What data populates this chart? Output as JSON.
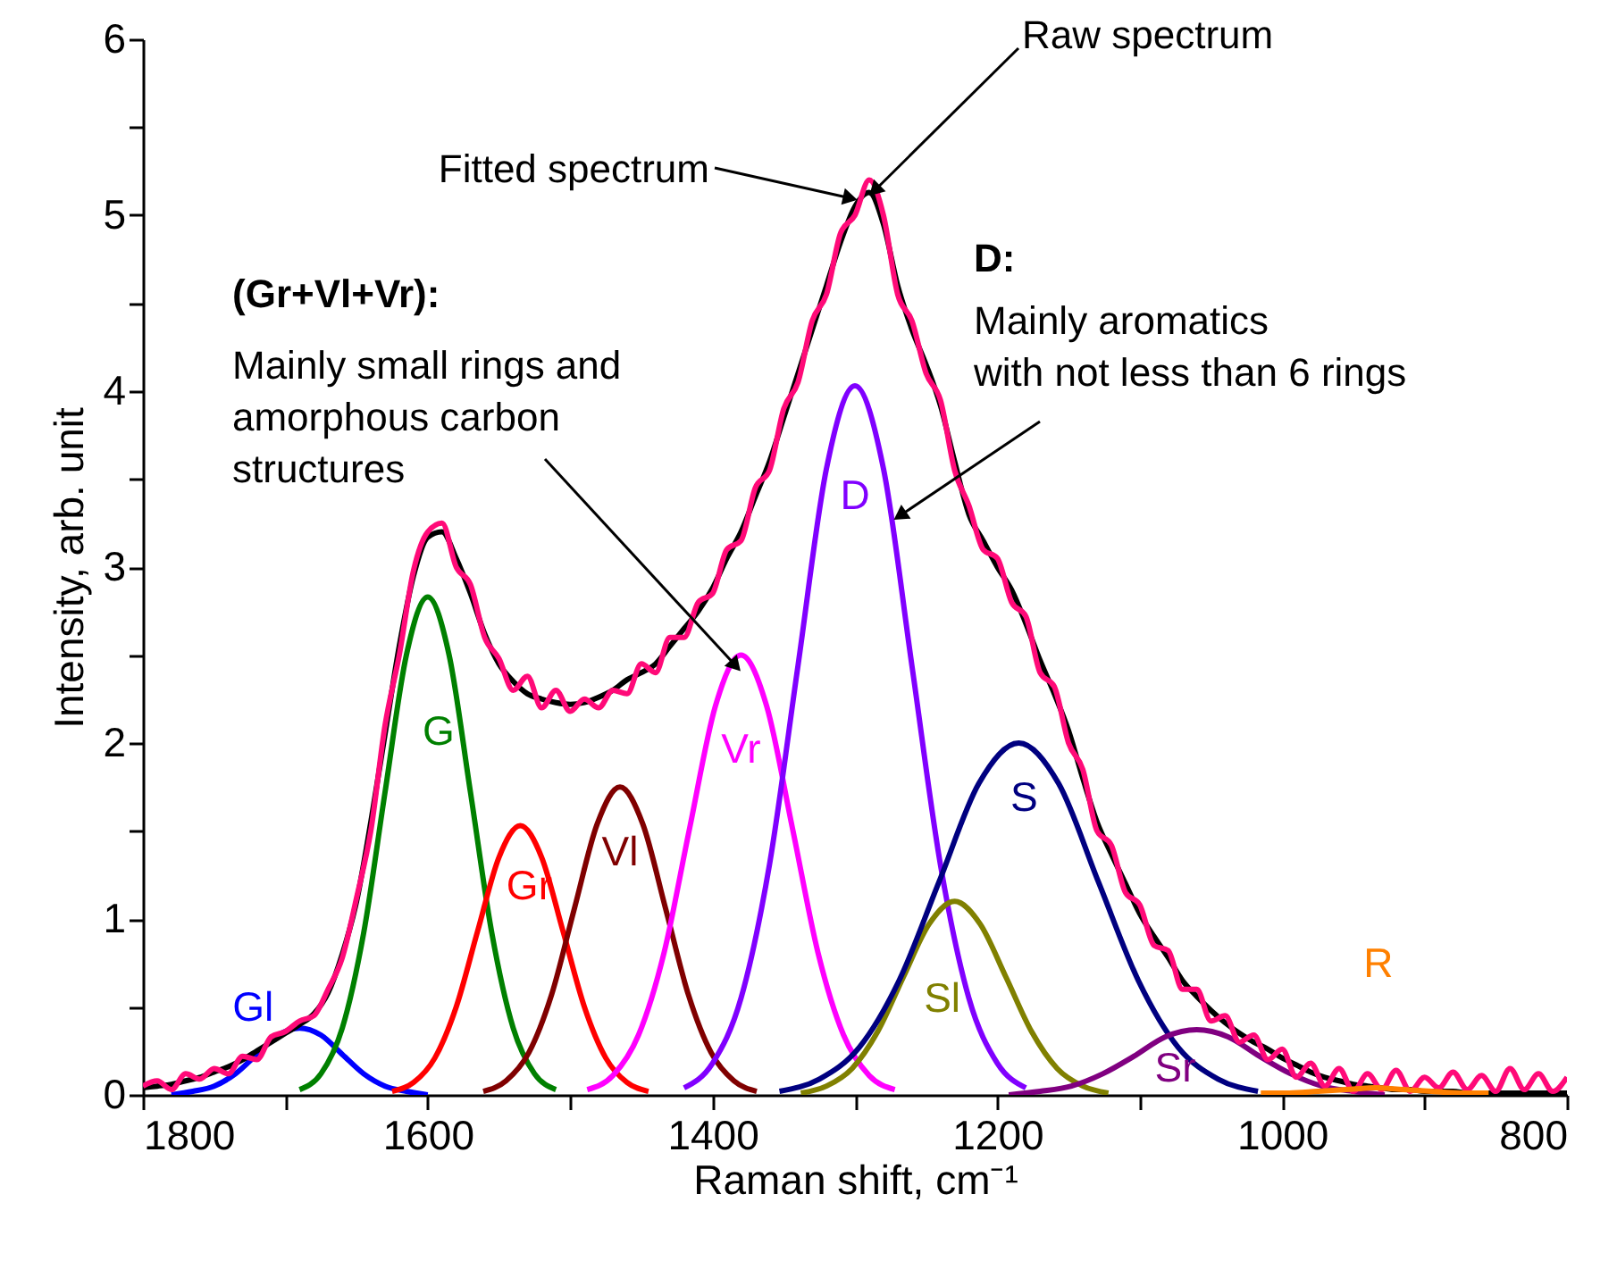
{
  "chart_data": {
    "type": "line",
    "xlabel": "Raman shift, cm⁻¹",
    "ylabel": "Intensity, arb. unit",
    "xlim": [
      1800,
      800
    ],
    "ylim": [
      0,
      6
    ],
    "xticks": [
      1800,
      {
        "value": 1700,
        "label": null
      },
      1600,
      {
        "value": 1500,
        "label": null
      },
      1400,
      {
        "value": 1300,
        "label": null
      },
      1200,
      {
        "value": 1100,
        "label": null
      },
      1000,
      {
        "value": 900,
        "label": null
      },
      800
    ],
    "yticks": [
      0,
      {
        "value": 0.5,
        "label": null
      },
      1,
      {
        "value": 1.5,
        "label": null
      },
      2,
      {
        "value": 2.5,
        "label": null
      },
      3,
      {
        "value": 3.5,
        "label": null
      },
      4,
      {
        "value": 4.5,
        "label": null
      },
      5,
      {
        "value": 5.5,
        "label": null
      },
      6
    ],
    "grid": false,
    "line_style": "solid",
    "x": [
      1800,
      1790,
      1780,
      1770,
      1760,
      1750,
      1740,
      1730,
      1720,
      1710,
      1700,
      1690,
      1680,
      1670,
      1660,
      1650,
      1640,
      1630,
      1620,
      1610,
      1600,
      1590,
      1580,
      1570,
      1560,
      1550,
      1540,
      1530,
      1520,
      1510,
      1500,
      1490,
      1480,
      1470,
      1460,
      1450,
      1440,
      1430,
      1420,
      1410,
      1400,
      1390,
      1380,
      1370,
      1360,
      1350,
      1340,
      1330,
      1320,
      1310,
      1300,
      1290,
      1280,
      1270,
      1260,
      1250,
      1240,
      1230,
      1220,
      1210,
      1200,
      1190,
      1180,
      1170,
      1160,
      1150,
      1140,
      1130,
      1120,
      1110,
      1100,
      1090,
      1080,
      1070,
      1060,
      1050,
      1040,
      1030,
      1020,
      1010,
      1000,
      990,
      980,
      970,
      960,
      950,
      940,
      930,
      920,
      910,
      900,
      890,
      880,
      870,
      860,
      850,
      840,
      830,
      820,
      810,
      800
    ],
    "series": [
      {
        "name": "Gl",
        "color": "#0000ff",
        "x": [
          1780,
          1765,
          1750,
          1735,
          1720,
          1705,
          1690,
          1675,
          1660,
          1645,
          1630,
          1615,
          1600
        ],
        "values": [
          0,
          0.02,
          0.05,
          0.12,
          0.23,
          0.34,
          0.38,
          0.34,
          0.23,
          0.12,
          0.05,
          0.02,
          0
        ]
      },
      {
        "name": "G",
        "color": "#008000",
        "x": [
          1690,
          1675,
          1660,
          1645,
          1630,
          1615,
          1600,
          1585,
          1570,
          1555,
          1540,
          1525,
          1510
        ],
        "values": [
          0.03,
          0.12,
          0.38,
          0.92,
          1.72,
          2.5,
          2.83,
          2.5,
          1.72,
          0.92,
          0.38,
          0.12,
          0.03
        ]
      },
      {
        "name": "Gr",
        "color": "#ff0000",
        "x": [
          1625,
          1610,
          1595,
          1580,
          1565,
          1550,
          1535,
          1520,
          1505,
          1490,
          1475,
          1460,
          1445
        ],
        "values": [
          0.02,
          0.07,
          0.21,
          0.5,
          0.93,
          1.35,
          1.53,
          1.35,
          0.93,
          0.5,
          0.21,
          0.07,
          0.02
        ]
      },
      {
        "name": "Vl",
        "color": "#800000",
        "x": [
          1561,
          1545,
          1529,
          1513,
          1497,
          1481,
          1465,
          1449,
          1433,
          1417,
          1401,
          1385,
          1369
        ],
        "values": [
          0.02,
          0.08,
          0.24,
          0.57,
          1.06,
          1.54,
          1.75,
          1.54,
          1.06,
          0.57,
          0.24,
          0.08,
          0.02
        ]
      },
      {
        "name": "Vr",
        "color": "#ff00ff",
        "x": [
          1488,
          1470,
          1452,
          1434,
          1416,
          1398,
          1380,
          1362,
          1344,
          1326,
          1308,
          1290,
          1272
        ],
        "values": [
          0.03,
          0.11,
          0.34,
          0.81,
          1.52,
          2.21,
          2.5,
          2.21,
          1.52,
          0.81,
          0.34,
          0.11,
          0.03
        ]
      },
      {
        "name": "D",
        "color": "#8000ff",
        "x": [
          1420,
          1400,
          1380,
          1360,
          1340,
          1320,
          1300,
          1280,
          1260,
          1240,
          1220,
          1200,
          1180
        ],
        "values": [
          0.04,
          0.18,
          0.55,
          1.31,
          2.44,
          3.56,
          4.03,
          3.56,
          2.44,
          1.31,
          0.55,
          0.18,
          0.04
        ]
      },
      {
        "name": "Sl",
        "color": "#808000",
        "x": [
          1338,
          1320,
          1302,
          1284,
          1266,
          1248,
          1230,
          1212,
          1194,
          1176,
          1158,
          1140,
          1122
        ],
        "values": [
          0.01,
          0.05,
          0.15,
          0.36,
          0.67,
          0.97,
          1.1,
          0.97,
          0.67,
          0.36,
          0.15,
          0.05,
          0.01
        ]
      },
      {
        "name": "S",
        "color": "#000080",
        "x": [
          1353,
          1325,
          1297,
          1269,
          1241,
          1213,
          1185,
          1157,
          1129,
          1101,
          1073,
          1045,
          1017
        ],
        "values": [
          0.02,
          0.09,
          0.27,
          0.65,
          1.21,
          1.77,
          2.0,
          1.77,
          1.21,
          0.65,
          0.27,
          0.09,
          0.02
        ]
      },
      {
        "name": "Sr",
        "color": "#800080",
        "x": [
          1192,
          1170,
          1148,
          1126,
          1104,
          1082,
          1060,
          1038,
          1016,
          994,
          972,
          950,
          928
        ],
        "values": [
          0,
          0.02,
          0.05,
          0.12,
          0.22,
          0.33,
          0.37,
          0.33,
          0.22,
          0.12,
          0.05,
          0.02,
          0
        ]
      },
      {
        "color": "#000000",
        "values": [
          0.04,
          0.05,
          0.06,
          0.08,
          0.1,
          0.13,
          0.16,
          0.2,
          0.25,
          0.3,
          0.35,
          0.4,
          0.46,
          0.58,
          0.8,
          1.1,
          1.55,
          2.05,
          2.55,
          2.95,
          3.17,
          3.2,
          3.05,
          2.85,
          2.62,
          2.45,
          2.35,
          2.28,
          2.25,
          2.23,
          2.22,
          2.23,
          2.26,
          2.3,
          2.36,
          2.4,
          2.45,
          2.55,
          2.65,
          2.75,
          2.88,
          3.05,
          3.2,
          3.4,
          3.6,
          3.85,
          4.1,
          4.35,
          4.6,
          4.85,
          5.05,
          5.13,
          4.95,
          4.6,
          4.35,
          4.15,
          3.92,
          3.6,
          3.3,
          3.15,
          3.0,
          2.87,
          2.68,
          2.47,
          2.28,
          2.07,
          1.8,
          1.55,
          1.37,
          1.2,
          1.03,
          0.9,
          0.78,
          0.65,
          0.56,
          0.48,
          0.41,
          0.35,
          0.3,
          0.26,
          0.21,
          0.17,
          0.13,
          0.1,
          0.08,
          0.06,
          0.05,
          0.04,
          0.03,
          0.03,
          0.02,
          0.02,
          0.02,
          0.01,
          0.01,
          0.01,
          0.01,
          0.01,
          0.01,
          0.01,
          0.01
        ]
      },
      {
        "color": "#ff0a78",
        "values": [
          0.05,
          0.08,
          0.03,
          0.12,
          0.09,
          0.15,
          0.12,
          0.22,
          0.2,
          0.33,
          0.36,
          0.42,
          0.45,
          0.6,
          0.78,
          1.12,
          1.5,
          2.1,
          2.5,
          2.98,
          3.2,
          3.25,
          3.0,
          2.9,
          2.6,
          2.48,
          2.3,
          2.38,
          2.2,
          2.3,
          2.18,
          2.25,
          2.2,
          2.3,
          2.28,
          2.45,
          2.4,
          2.6,
          2.6,
          2.8,
          2.85,
          3.1,
          3.15,
          3.45,
          3.55,
          3.9,
          4.05,
          4.4,
          4.55,
          4.9,
          5.0,
          5.2,
          5.0,
          4.55,
          4.4,
          4.1,
          3.95,
          3.55,
          3.35,
          3.1,
          3.05,
          2.8,
          2.72,
          2.4,
          2.32,
          2.0,
          1.85,
          1.5,
          1.42,
          1.15,
          1.08,
          0.85,
          0.82,
          0.6,
          0.6,
          0.42,
          0.45,
          0.3,
          0.34,
          0.2,
          0.26,
          0.1,
          0.18,
          0.05,
          0.15,
          0.02,
          0.12,
          0.03,
          0.14,
          0.02,
          0.1,
          0.04,
          0.13,
          0.03,
          0.11,
          0.02,
          0.15,
          0.03,
          0.12,
          0.02,
          0.1
        ]
      },
      {
        "name": "R",
        "color": "#ff8000",
        "x": [
          1015,
          995,
          975,
          955,
          935,
          915,
          895,
          875,
          855
        ],
        "values": [
          0.01,
          0.01,
          0.02,
          0.03,
          0.04,
          0.03,
          0.02,
          0.01,
          0.01
        ]
      }
    ],
    "annotations": [
      {
        "text": "Fitted spectrum",
        "x": 1305,
        "y": 5.1
      },
      {
        "text": "Raw spectrum",
        "x": 1285,
        "y": 5.15
      },
      "(Gr+Vl+Vr):",
      {
        "text": "Mainly small rings and\namorphous carbon\nstructures",
        "x": 1385,
        "y": 2.45
      },
      "D:",
      {
        "text": "Mainly aromatics\nwith not less than 6 rings",
        "x": 1267,
        "y": 3.3
      }
    ]
  }
}
